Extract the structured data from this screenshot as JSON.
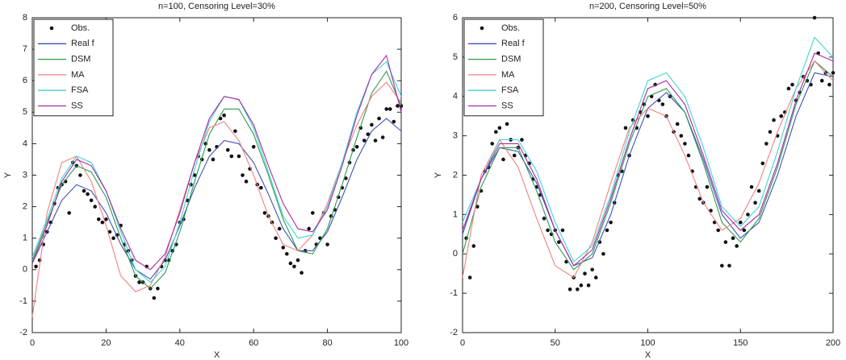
{
  "chart_data": [
    {
      "type": "line",
      "title": "n=100, Censoring Level=30%",
      "xlabel": "X",
      "ylabel": "Y",
      "xlim": [
        0,
        100
      ],
      "ylim": [
        -2,
        8
      ],
      "xticks": [
        0,
        20,
        40,
        60,
        80,
        100
      ],
      "yticks": [
        -2,
        -1,
        0,
        1,
        2,
        3,
        4,
        5,
        6,
        7,
        8
      ],
      "legend": "upper left",
      "x": [
        0,
        4,
        8,
        12,
        16,
        20,
        24,
        28,
        32,
        36,
        40,
        44,
        48,
        52,
        56,
        60,
        64,
        68,
        72,
        76,
        80,
        84,
        88,
        92,
        96,
        100
      ],
      "series": [
        {
          "name": "Obs.",
          "color": "#111111",
          "mode": "markers",
          "x": [
            1,
            2,
            3,
            4,
            5,
            6,
            7,
            8,
            9,
            10,
            11,
            12,
            13,
            14,
            15,
            16,
            17,
            18,
            19,
            20,
            21,
            22,
            23,
            24,
            25,
            26,
            27,
            28,
            29,
            30,
            31,
            32,
            33,
            34,
            35,
            36,
            37,
            38,
            39,
            40,
            41,
            42,
            43,
            44,
            45,
            46,
            47,
            48,
            49,
            50,
            51,
            52,
            53,
            54,
            55,
            56,
            57,
            58,
            59,
            60,
            61,
            62,
            63,
            64,
            65,
            66,
            67,
            68,
            69,
            70,
            71,
            72,
            73,
            74,
            75,
            76,
            77,
            78,
            79,
            80,
            81,
            82,
            83,
            84,
            85,
            86,
            87,
            88,
            89,
            90,
            91,
            92,
            93,
            94,
            95,
            96,
            97,
            98,
            99,
            100
          ],
          "values": [
            0.1,
            0.3,
            0.8,
            1.2,
            1.5,
            2.1,
            2.6,
            2.7,
            2.8,
            1.8,
            3.4,
            3.3,
            3.0,
            2.5,
            2.4,
            2.2,
            2.0,
            1.6,
            1.5,
            1.6,
            1.2,
            1.0,
            1.1,
            1.4,
            0.8,
            0.6,
            0.3,
            -0.2,
            -0.4,
            -0.4,
            0.1,
            -0.6,
            -0.9,
            -0.6,
            0.1,
            0.3,
            0.3,
            0.6,
            0.8,
            1.5,
            1.6,
            2.2,
            2.7,
            3.0,
            3.6,
            3.5,
            4.0,
            3.8,
            3.5,
            3.9,
            4.8,
            4.9,
            3.8,
            3.6,
            4.4,
            3.6,
            3.0,
            2.8,
            3.2,
            3.9,
            2.7,
            2.6,
            1.8,
            1.7,
            1.5,
            1.0,
            1.3,
            0.7,
            0.5,
            0.2,
            0.1,
            0.3,
            -0.1,
            0.6,
            1.3,
            1.8,
            0.8,
            1.0,
            1.8,
            0.8,
            1.7,
            1.9,
            2.3,
            2.6,
            2.9,
            3.4,
            3.8,
            3.9,
            4.5,
            4.1,
            4.3,
            4.6,
            4.1,
            4.8,
            4.2,
            5.1,
            5.1,
            4.7,
            5.2,
            5.2
          ]
        },
        {
          "name": "Real f",
          "color": "#3f51b5",
          "mode": "lines",
          "values": [
            0.2,
            1.2,
            2.2,
            2.7,
            2.5,
            1.8,
            0.8,
            0.0,
            -0.3,
            0.3,
            1.4,
            2.6,
            3.6,
            4.1,
            4.0,
            3.4,
            2.4,
            1.3,
            0.6,
            0.6,
            1.2,
            2.3,
            3.5,
            4.4,
            4.8,
            4.4
          ]
        },
        {
          "name": "DSM",
          "color": "#2e9a4e",
          "mode": "lines",
          "values": [
            0.3,
            1.5,
            2.7,
            3.3,
            3.1,
            2.3,
            1.0,
            -0.2,
            -0.6,
            -0.1,
            1.2,
            2.8,
            4.3,
            5.1,
            5.1,
            4.3,
            3.0,
            1.6,
            0.6,
            0.5,
            1.3,
            2.7,
            4.2,
            5.6,
            6.3,
            5.2
          ]
        },
        {
          "name": "MA",
          "color": "#f28080",
          "mode": "lines",
          "values": [
            -1.5,
            1.8,
            3.4,
            3.6,
            2.8,
            1.4,
            -0.2,
            -0.7,
            -0.5,
            0.4,
            1.9,
            3.4,
            4.5,
            4.7,
            4.1,
            3.0,
            1.7,
            0.8,
            0.6,
            1.1,
            2.1,
            3.4,
            4.6,
            5.5,
            5.95,
            5.3
          ]
        },
        {
          "name": "FSA",
          "color": "#3fd6cf",
          "mode": "lines",
          "values": [
            0.4,
            1.6,
            2.9,
            3.6,
            3.4,
            2.5,
            1.2,
            0.0,
            -0.4,
            0.1,
            1.5,
            3.2,
            4.7,
            5.5,
            5.4,
            4.5,
            3.1,
            1.7,
            1.0,
            1.1,
            2.0,
            3.4,
            5.0,
            6.2,
            6.6,
            5.5
          ]
        },
        {
          "name": "SS",
          "color": "#a52aa5",
          "mode": "lines",
          "values": [
            0.2,
            1.4,
            2.8,
            3.5,
            3.3,
            2.5,
            1.3,
            0.3,
            0.0,
            0.5,
            1.8,
            3.4,
            4.8,
            5.5,
            5.4,
            4.6,
            3.3,
            2.1,
            1.3,
            1.2,
            1.9,
            3.3,
            4.9,
            6.2,
            6.8,
            5.0
          ]
        }
      ]
    },
    {
      "type": "line",
      "title": "n=200, Censoring Level=50%",
      "xlabel": "X",
      "ylabel": "Y",
      "xlim": [
        0,
        200
      ],
      "ylim": [
        -2,
        6
      ],
      "xticks": [
        0,
        50,
        100,
        150,
        200
      ],
      "yticks": [
        -2,
        -1,
        0,
        1,
        2,
        3,
        4,
        5,
        6
      ],
      "legend": "upper left",
      "x": [
        0,
        10,
        20,
        30,
        40,
        50,
        60,
        70,
        80,
        90,
        100,
        110,
        120,
        130,
        140,
        150,
        160,
        170,
        180,
        190,
        200
      ],
      "series": [
        {
          "name": "Obs.",
          "color": "#111111",
          "mode": "markers",
          "x": [
            2,
            4,
            6,
            8,
            10,
            12,
            14,
            16,
            18,
            20,
            22,
            24,
            26,
            28,
            30,
            32,
            34,
            36,
            38,
            40,
            42,
            44,
            46,
            48,
            50,
            52,
            54,
            56,
            58,
            60,
            62,
            64,
            66,
            68,
            70,
            72,
            74,
            76,
            78,
            80,
            82,
            84,
            86,
            88,
            90,
            92,
            94,
            96,
            98,
            100,
            102,
            104,
            106,
            108,
            110,
            112,
            114,
            116,
            118,
            120,
            122,
            124,
            126,
            128,
            130,
            132,
            134,
            136,
            138,
            140,
            142,
            144,
            146,
            148,
            150,
            152,
            154,
            156,
            158,
            160,
            162,
            164,
            166,
            168,
            170,
            172,
            174,
            176,
            178,
            180,
            182,
            184,
            186,
            188,
            190,
            192,
            194,
            196,
            198,
            200
          ],
          "values": [
            0.4,
            -0.6,
            0.2,
            1.2,
            1.6,
            2.1,
            2.2,
            2.8,
            3.1,
            3.2,
            2.4,
            3.3,
            2.9,
            2.5,
            2.7,
            2.9,
            2.5,
            2.3,
            1.9,
            1.7,
            1.5,
            0.9,
            0.6,
            0.5,
            0.6,
            0.3,
            0.6,
            -0.2,
            -0.9,
            -0.6,
            -0.9,
            -0.8,
            -0.5,
            -0.8,
            -0.4,
            -0.6,
            0.3,
            0.0,
            0.6,
            0.8,
            1.3,
            2.0,
            2.1,
            3.2,
            2.5,
            3.4,
            3.2,
            3.6,
            3.8,
            3.5,
            4.0,
            4.3,
            3.9,
            3.8,
            3.5,
            4.0,
            3.1,
            3.3,
            3.0,
            2.8,
            2.5,
            2.1,
            1.7,
            1.4,
            1.3,
            1.7,
            1.1,
            0.8,
            0.6,
            -0.3,
            0.3,
            -0.3,
            0.4,
            0.2,
            0.8,
            0.6,
            1.0,
            1.7,
            1.3,
            1.6,
            2.3,
            2.8,
            3.1,
            3.4,
            3.0,
            3.5,
            3.6,
            4.2,
            4.3,
            3.9,
            4.1,
            4.5,
            4.4,
            4.3,
            6.0,
            5.1,
            4.4,
            4.6,
            4.3,
            4.6
          ]
        },
        {
          "name": "Real f",
          "color": "#3f51b5",
          "mode": "lines",
          "values": [
            0.5,
            1.9,
            2.7,
            2.6,
            1.8,
            0.6,
            -0.3,
            -0.1,
            1.0,
            2.5,
            3.7,
            4.1,
            3.6,
            2.4,
            1.0,
            0.4,
            0.8,
            2.0,
            3.5,
            4.6,
            4.5
          ]
        },
        {
          "name": "DSM",
          "color": "#2e9a4e",
          "mode": "lines",
          "values": [
            0.0,
            1.7,
            2.7,
            2.7,
            1.6,
            0.3,
            -0.4,
            0.0,
            1.3,
            2.8,
            4.0,
            4.2,
            3.6,
            2.3,
            0.8,
            0.3,
            0.9,
            2.2,
            3.8,
            4.9,
            4.5
          ]
        },
        {
          "name": "MA",
          "color": "#f28080",
          "mode": "lines",
          "values": [
            -0.6,
            2.0,
            2.9,
            2.2,
            0.9,
            -0.3,
            -0.6,
            0.3,
            1.8,
            3.2,
            3.7,
            3.5,
            2.5,
            1.3,
            0.6,
            0.9,
            1.8,
            3.1,
            4.2,
            4.9,
            4.4
          ]
        },
        {
          "name": "FSA",
          "color": "#3fd6cf",
          "mode": "lines",
          "values": [
            0.8,
            1.9,
            2.9,
            2.9,
            2.1,
            0.8,
            -0.2,
            0.2,
            1.5,
            3.1,
            4.4,
            4.6,
            4.0,
            2.7,
            1.2,
            0.7,
            1.2,
            2.6,
            4.2,
            5.5,
            5.0
          ]
        },
        {
          "name": "SS",
          "color": "#a52aa5",
          "mode": "lines",
          "values": [
            0.6,
            1.9,
            2.8,
            2.8,
            1.9,
            0.6,
            -0.3,
            0.1,
            1.4,
            2.9,
            4.2,
            4.4,
            3.8,
            2.5,
            1.1,
            0.6,
            1.0,
            2.3,
            3.9,
            5.1,
            4.9
          ]
        }
      ]
    }
  ]
}
